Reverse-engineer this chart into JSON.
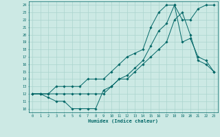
{
  "xlabel": "Humidex (Indice chaleur)",
  "background_color": "#cce9e4",
  "grid_color": "#aad4ce",
  "line_color": "#006666",
  "xlim": [
    -0.5,
    23.5
  ],
  "ylim": [
    9.5,
    24.5
  ],
  "xticks": [
    0,
    1,
    2,
    3,
    4,
    5,
    6,
    7,
    8,
    9,
    10,
    11,
    12,
    13,
    14,
    15,
    16,
    17,
    18,
    19,
    20,
    21,
    22,
    23
  ],
  "yticks": [
    10,
    11,
    12,
    13,
    14,
    15,
    16,
    17,
    18,
    19,
    20,
    21,
    22,
    23,
    24
  ],
  "line1_x": [
    0,
    1,
    2,
    3,
    4,
    5,
    6,
    7,
    8,
    9,
    10,
    11,
    12,
    13,
    14,
    15,
    16,
    17,
    18,
    19,
    20,
    21,
    22,
    23
  ],
  "line1_y": [
    12,
    12,
    12,
    13,
    13,
    13,
    13,
    14,
    14,
    14,
    15,
    16,
    17,
    17.5,
    18,
    21,
    23,
    24,
    24,
    22,
    22,
    23.5,
    24,
    24
  ],
  "line2_x": [
    0,
    1,
    2,
    3,
    4,
    5,
    6,
    7,
    8,
    9,
    10,
    11,
    12,
    13,
    14,
    15,
    16,
    17,
    18,
    19,
    20,
    21,
    22,
    23
  ],
  "line2_y": [
    12,
    12,
    11.5,
    11,
    11,
    10,
    10,
    10,
    10,
    12.5,
    13,
    14,
    14.5,
    15.5,
    16.5,
    18.5,
    20.5,
    21.5,
    24,
    19,
    19.5,
    17,
    16.5,
    15
  ],
  "line3_x": [
    0,
    1,
    2,
    3,
    4,
    5,
    6,
    7,
    8,
    9,
    10,
    11,
    12,
    13,
    14,
    15,
    16,
    17,
    18,
    19,
    20,
    21,
    22,
    23
  ],
  "line3_y": [
    12,
    12,
    12,
    12,
    12,
    12,
    12,
    12,
    12,
    12,
    13,
    14,
    14,
    15,
    16,
    17,
    18,
    19,
    22,
    23,
    20,
    16.5,
    16,
    15
  ]
}
